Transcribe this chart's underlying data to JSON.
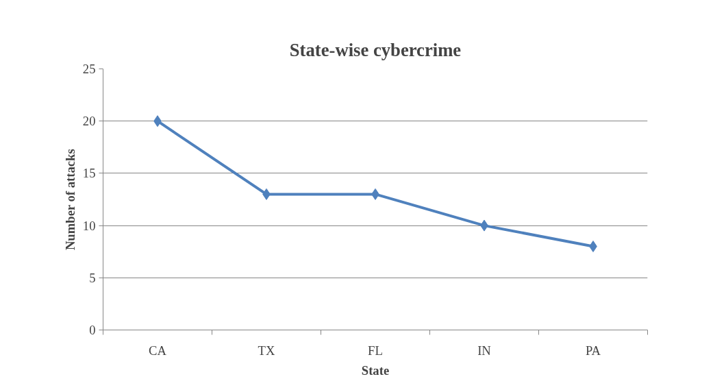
{
  "chart_data": {
    "type": "line",
    "title": "State-wise cybercrime",
    "xlabel": "State",
    "ylabel": "Number of attacks",
    "categories": [
      "CA",
      "TX",
      "FL",
      "IN",
      "PA"
    ],
    "series": [
      {
        "color": "#4f81bd",
        "values": [
          20,
          13,
          13,
          10,
          8
        ]
      }
    ],
    "ylim": [
      0,
      25
    ],
    "yticks": [
      0,
      5,
      10,
      15,
      20,
      25
    ],
    "grid": "y",
    "marker": "diamond",
    "line_style": "solid"
  }
}
